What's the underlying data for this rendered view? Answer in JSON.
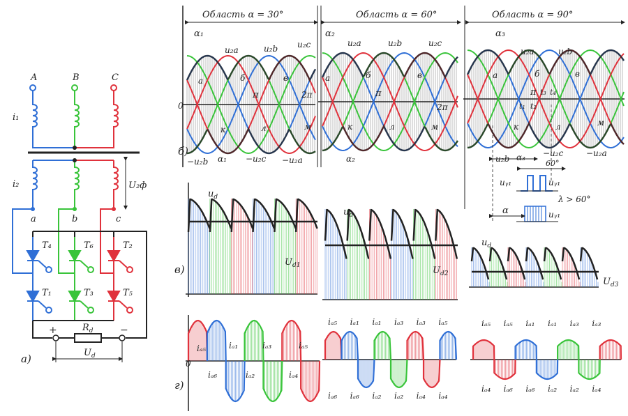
{
  "colors": {
    "phaseA": "#2f6fd6",
    "phaseB": "#39c43a",
    "phaseC": "#e0323c",
    "ink": "#222222",
    "paper": "#ffffff"
  },
  "circuit": {
    "phase_labels": [
      "A",
      "B",
      "C"
    ],
    "secondary_labels": [
      "a",
      "b",
      "c"
    ],
    "primary_current": "i₁",
    "secondary_current": "i₂",
    "phase_voltage": "U₂ф",
    "thyristors": [
      "T₄",
      "T₆",
      "T₂",
      "T₁",
      "T₃",
      "T₅"
    ],
    "plus": "+",
    "minus": "−",
    "load": "R",
    "load_sub": "d",
    "output_voltage": "U",
    "output_sub": "d",
    "figure_label": "а)"
  },
  "regions": [
    {
      "title": "Область  α = 30°",
      "alpha": "α₁"
    },
    {
      "title": "Область  α = 60°",
      "alpha": "α₂"
    },
    {
      "title": "Область  α = 90°",
      "alpha": "α₃"
    }
  ],
  "panel_b": {
    "label": "б)",
    "zero": "0",
    "pos_labels": [
      "u₂a",
      "u₂b",
      "u₂c"
    ],
    "neg_labels": [
      "−u₂b",
      "−u₂c",
      "−u₂a"
    ],
    "points_top": [
      "а",
      "б",
      "в"
    ],
    "points_bottom": [
      "к",
      "л",
      "м"
    ],
    "pi": "π",
    "two_pi": "2π",
    "t_labels": [
      "t₃",
      "t₄",
      "t₁",
      "t₂"
    ],
    "angle_60": "60°",
    "uy": "uᵧ₁",
    "lambda": "λ > 60°",
    "alpha": "α"
  },
  "panel_v": {
    "label": "в)",
    "ud": "u",
    "ud_sub": "d",
    "Ud": [
      "U",
      "U",
      "U"
    ],
    "Ud_subs": [
      "d1",
      "d2",
      "d3"
    ]
  },
  "panel_g": {
    "label": "г)",
    "zero": "0",
    "r1_top": [
      "iₐ₅",
      "iₐ₁",
      "iₐ₃",
      "iₐ₅"
    ],
    "r1_bottom": [
      "iₐ₆",
      "iₐ₂",
      "iₐ₄"
    ],
    "r2_top": [
      "iₐ₅",
      "iₐ₁",
      "iₐ₁",
      "iₐ₃",
      "iₐ₃",
      "iₐ₅"
    ],
    "r2_bottom": [
      "iₐ₆",
      "iₐ₆",
      "iₐ₂",
      "iₐ₂",
      "iₐ₄",
      "iₐ₄"
    ],
    "r3_top": [
      "iₐ₅",
      "iₐ₅",
      "iₐ₁",
      "iₐ₁",
      "iₐ₃",
      "iₐ₃"
    ],
    "r3_bottom": [
      "iₐ₄",
      "iₐ₆",
      "iₐ₆",
      "iₐ₂",
      "iₐ₂",
      "iₐ₄"
    ]
  }
}
